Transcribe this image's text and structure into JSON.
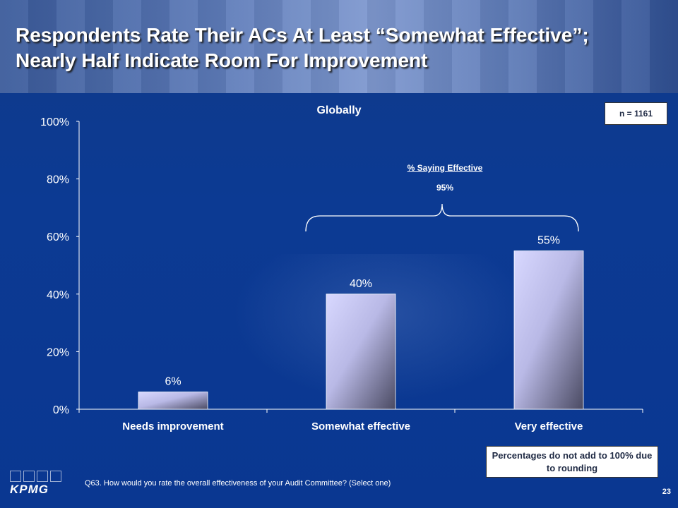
{
  "slide": {
    "title_line1": "Respondents Rate Their ACs At Least “Somewhat Effective”;",
    "title_line2": "Nearly Half Indicate Room For Improvement",
    "sample_size": "n = 1161",
    "bracket_label": "% Saying Effective",
    "bracket_value": "95%",
    "note": "Percentages do not add to 100% due to rounding",
    "footnote": "Q63. How would you rate the overall effectiveness of your Audit Committee? (Select one)",
    "page_number": "23",
    "logo_text": "KPMG"
  },
  "chart_data": {
    "type": "bar",
    "title": "Globally",
    "categories": [
      "Needs improvement",
      "Somewhat effective",
      "Very effective"
    ],
    "values": [
      6,
      40,
      55
    ],
    "value_labels": [
      "6%",
      "40%",
      "55%"
    ],
    "yticks": [
      "0%",
      "20%",
      "40%",
      "60%",
      "80%",
      "100%"
    ],
    "ylim": [
      0,
      100
    ],
    "xlabel": "",
    "ylabel": "",
    "grid": false,
    "bar_color_light": "#cfd0f7",
    "bar_color_dark": "#4a4a62"
  }
}
